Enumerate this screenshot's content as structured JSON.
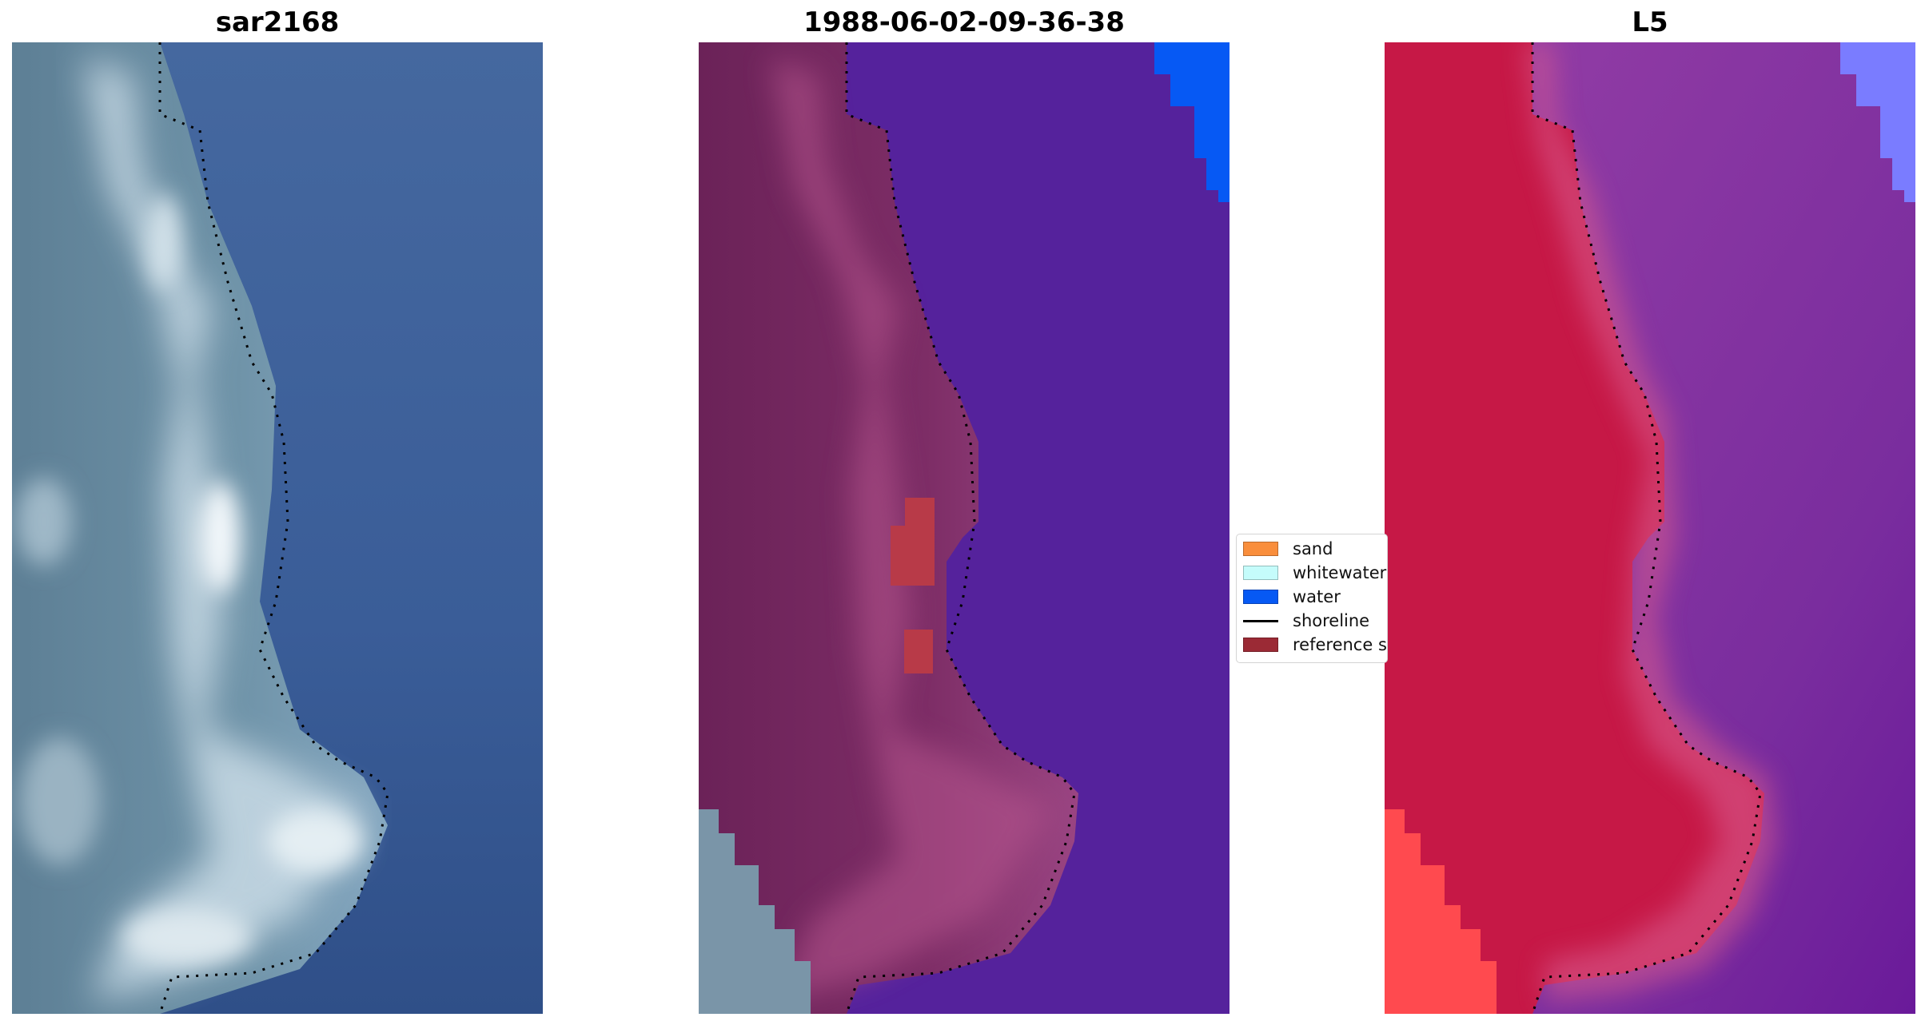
{
  "panels": [
    {
      "title": "sar2168"
    },
    {
      "title": "1988-06-02-09-36-38"
    },
    {
      "title": "L5"
    }
  ],
  "legend": {
    "items": [
      {
        "label": "sand",
        "color": "#f98e3c",
        "kind": "patch"
      },
      {
        "label": "whitewater",
        "color": "#c5fcfb",
        "kind": "patch"
      },
      {
        "label": "water",
        "color": "#0659f4",
        "kind": "patch"
      },
      {
        "label": "shoreline",
        "color": "#000000",
        "kind": "line"
      },
      {
        "label": "reference shoreline",
        "color": "#9b2a35",
        "kind": "patch"
      }
    ]
  },
  "colors": {
    "rgb_water": "#3b5f9c",
    "rgb_land": "#6a8ca3",
    "rgb_surf": "#d8e6ee",
    "class_land": "#7a2a63",
    "class_water": "#55229c",
    "class_water_bright": "#0659f4",
    "class_reference": "#b83a48",
    "index_land": "#c61846",
    "index_water": "#8c35a0",
    "index_water_light": "#7a7cff",
    "index_corner": "#ff4a4f"
  }
}
